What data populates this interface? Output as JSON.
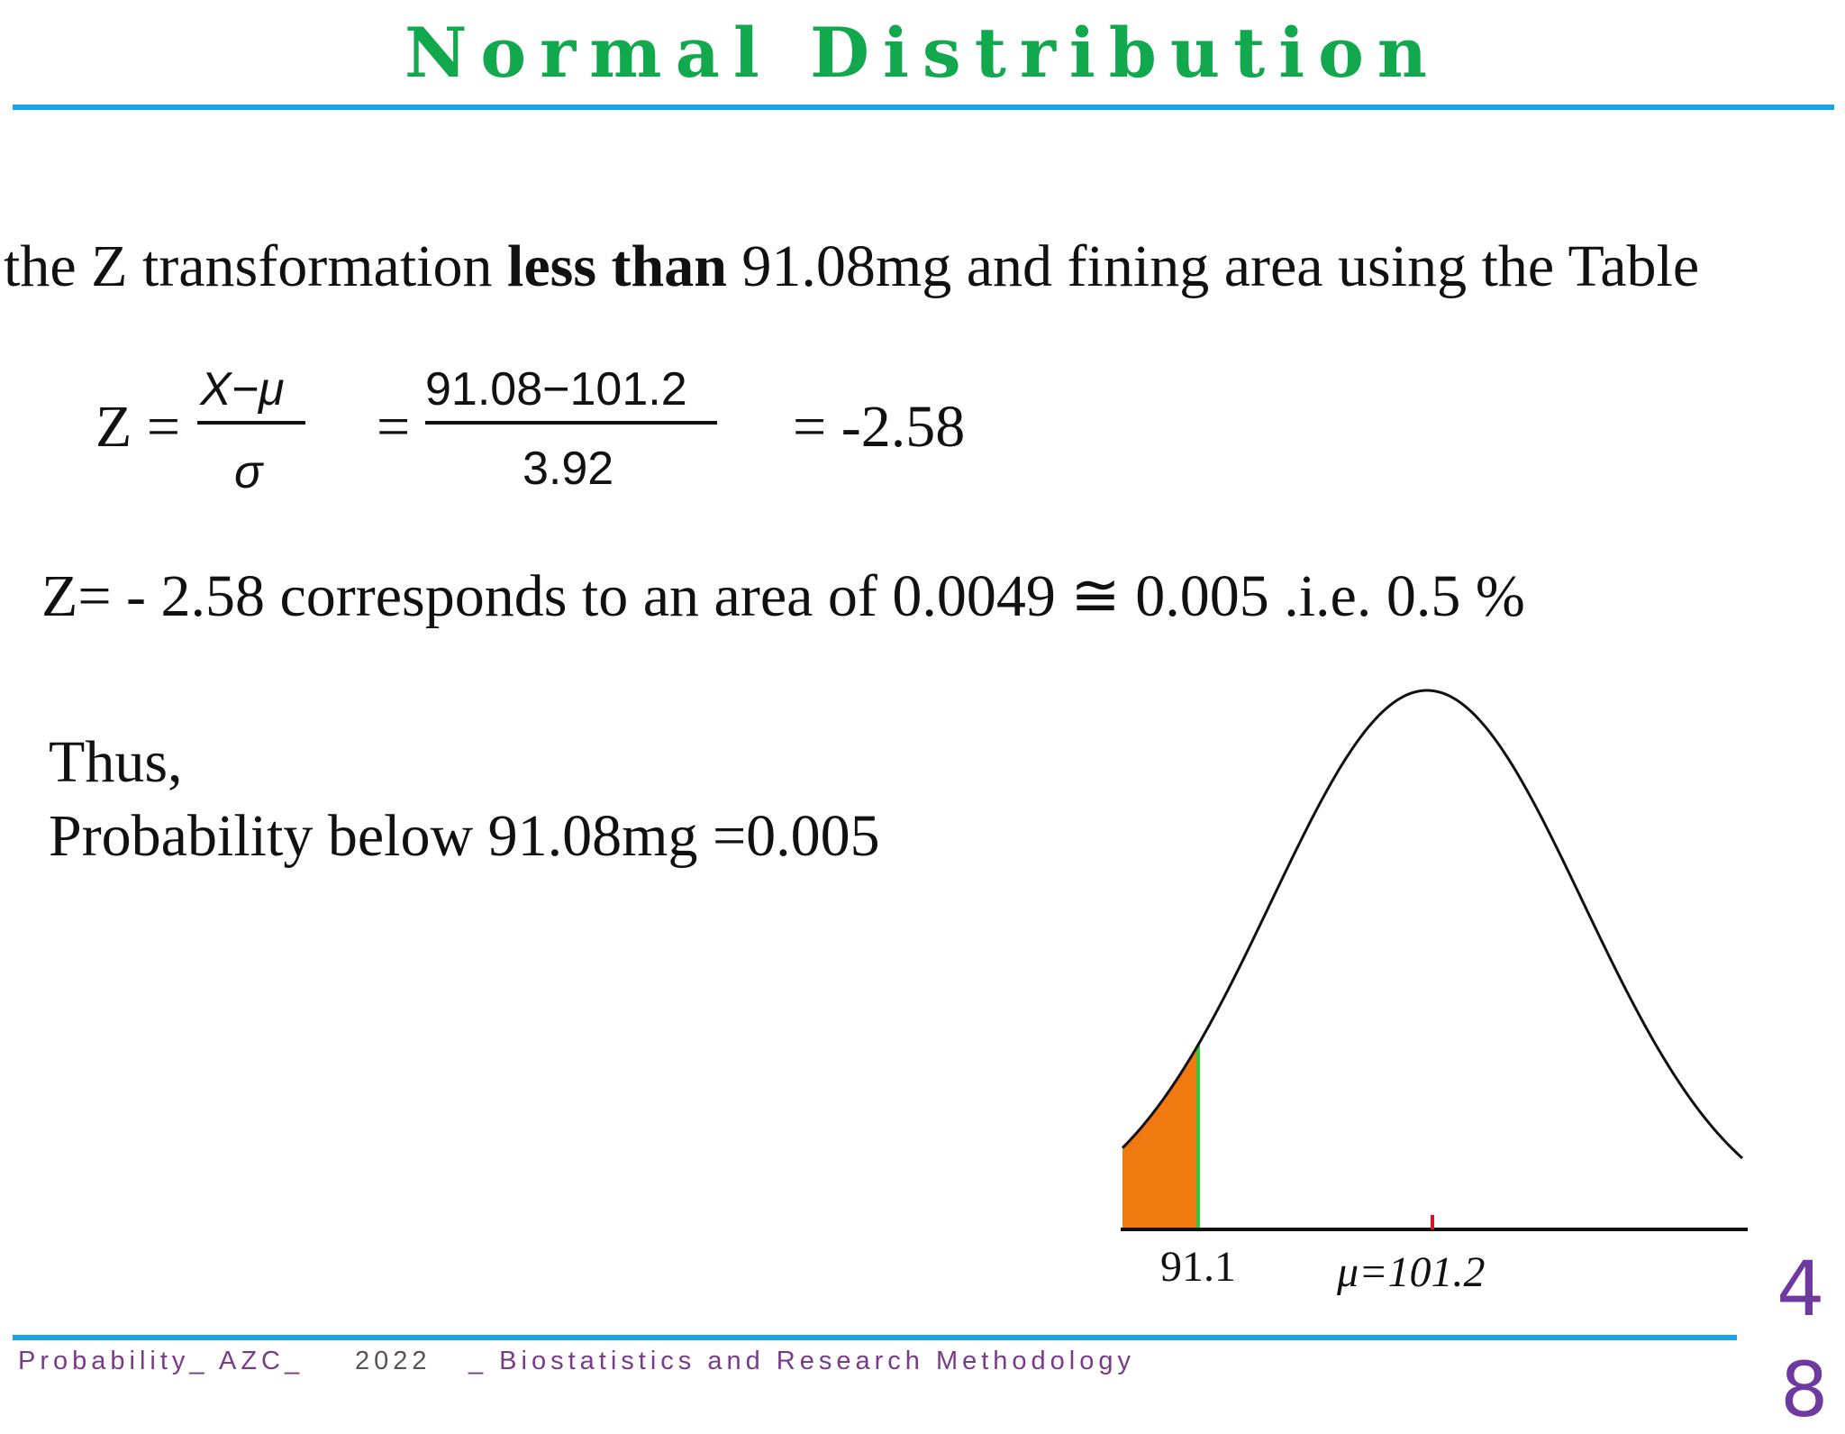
{
  "slide": {
    "title": "Normal Distribution",
    "intro": {
      "pre": "the Z transformation ",
      "bold": "less than",
      "post": " 91.08mg and fining area using the Table"
    },
    "formula": {
      "z": "Z =",
      "num1": "X−μ",
      "den1": "σ",
      "eq2": "=",
      "num2": "91.08−101.2",
      "den2": "3.92",
      "result": "= -2.58"
    },
    "correspond": "Z= - 2.58 corresponds to an area of 0.0049 ≅ 0.005 .i.e. 0.5 %",
    "thus": "Thus,",
    "probability": "Probability below 91.08mg =0.005",
    "curve": {
      "x_label": "91.1",
      "mean_label": "μ=101.2",
      "shade_color": "#f07a10",
      "line_color": "#3bc43b",
      "mean_tick_color": "#e0102a"
    },
    "page_number": "4",
    "page_number_overflow": "8"
  },
  "footer": {
    "part1": "Probability_ AZC_",
    "year": "2022",
    "part2": "_ Biostatistics and Research Methodology"
  },
  "colors": {
    "title": "#12a84e",
    "rule": "#1ba3e8",
    "footer": "#7a3a8a",
    "page_number": "#6e3aa0"
  }
}
